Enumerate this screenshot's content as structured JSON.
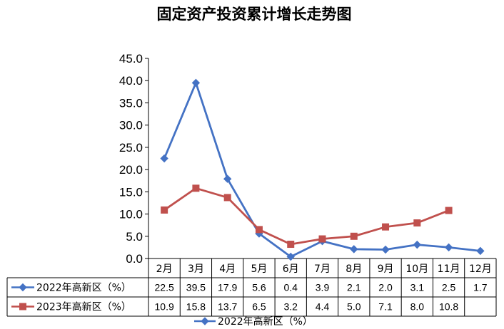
{
  "chart_data": {
    "type": "line",
    "title": "固定资产投资累计增长走势图",
    "categories": [
      "2月",
      "3月",
      "4月",
      "5月",
      "6月",
      "7月",
      "8月",
      "9月",
      "10月",
      "11月",
      "12月"
    ],
    "ylim": [
      0,
      45
    ],
    "yticks": [
      "0.0",
      "5.0",
      "10.0",
      "15.0",
      "20.0",
      "25.0",
      "30.0",
      "35.0",
      "40.0",
      "45.0"
    ],
    "grid": false,
    "data_table": true,
    "series": [
      {
        "name": "2022年高新区（%）",
        "color": "#4472C4",
        "marker": "diamond",
        "values": [
          22.5,
          39.5,
          17.9,
          5.6,
          0.4,
          3.9,
          2.1,
          2.0,
          3.1,
          2.5,
          1.7
        ],
        "labels": [
          "22.5",
          "39.5",
          "17.9",
          "5.6",
          "0.4",
          "3.9",
          "2.1",
          "2.0",
          "3.1",
          "2.5",
          "1.7"
        ]
      },
      {
        "name": "2023年高新区（%）",
        "color": "#C0504D",
        "marker": "square",
        "values": [
          10.9,
          15.8,
          13.7,
          6.5,
          3.2,
          4.4,
          5.0,
          7.1,
          8.0,
          10.8,
          null
        ],
        "labels": [
          "10.9",
          "15.8",
          "13.7",
          "6.5",
          "3.2",
          "4.4",
          "5.0",
          "7.1",
          "8.0",
          "10.8",
          ""
        ]
      }
    ],
    "legend": {
      "position": "bottom",
      "entries": [
        "2022年高新区（%）"
      ]
    }
  }
}
